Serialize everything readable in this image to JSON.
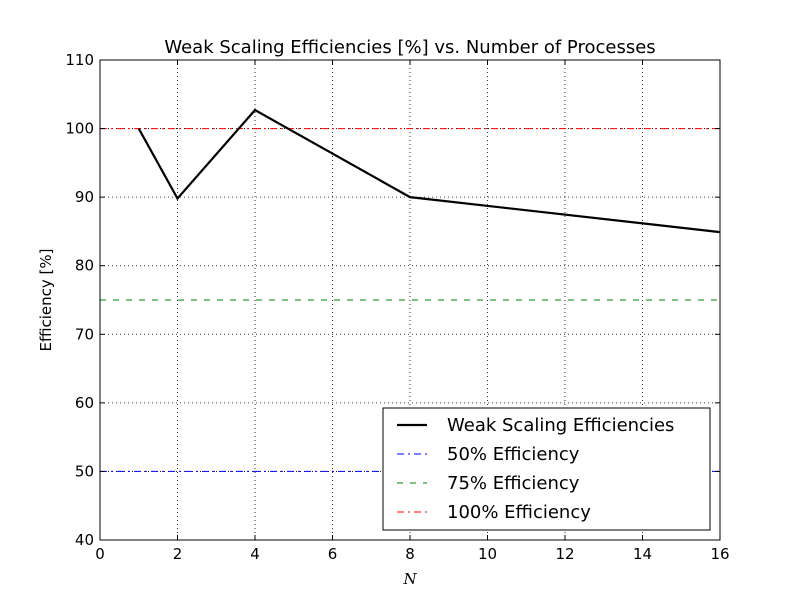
{
  "chart_data": {
    "type": "line",
    "title": "Weak Scaling Efficiencies [%] vs. Number of Processes",
    "xlabel": "N",
    "ylabel": "Efficiency [%]",
    "xlim": [
      0,
      16
    ],
    "ylim": [
      40,
      110
    ],
    "xticks": [
      0,
      2,
      4,
      6,
      8,
      10,
      12,
      14,
      16
    ],
    "yticks": [
      40,
      50,
      60,
      70,
      80,
      90,
      100,
      110
    ],
    "grid": true,
    "legend_position": "lower-right",
    "series": [
      {
        "name": "Weak Scaling Efficiencies",
        "style": "solid",
        "color": "#000000",
        "x": [
          1,
          2,
          4,
          8,
          16
        ],
        "y": [
          100,
          89.8,
          102.7,
          90.0,
          84.9
        ]
      },
      {
        "name": "50% Efficiency",
        "style": "dash-dot",
        "color": "#0000ff",
        "x": [
          0,
          16
        ],
        "y": [
          50,
          50
        ]
      },
      {
        "name": "75% Efficiency",
        "style": "dashed",
        "color": "#008000",
        "x": [
          0,
          16
        ],
        "y": [
          75,
          75
        ]
      },
      {
        "name": "100% Efficiency",
        "style": "dash-dot",
        "color": "#ff0000",
        "x": [
          0,
          16
        ],
        "y": [
          100,
          100
        ]
      }
    ]
  }
}
